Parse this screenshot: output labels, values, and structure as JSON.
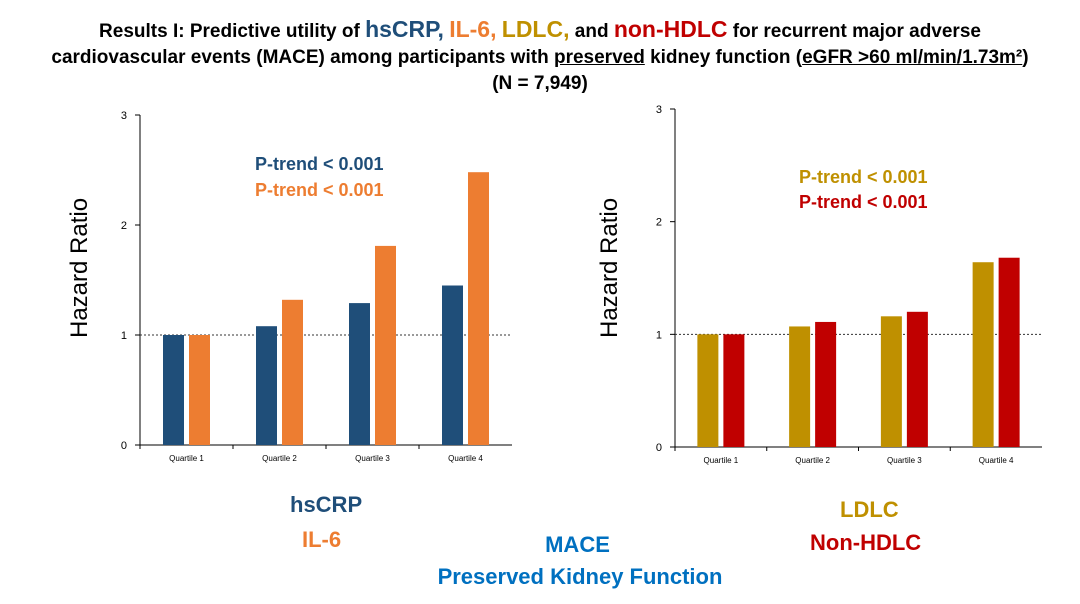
{
  "title": {
    "line1": {
      "prefix": "Results I: Predictive utility of ",
      "m1": "hsCRP,",
      "m2": "IL-6,",
      "m3": "LDLC,",
      "mid": "and",
      "m4": "non-HDLC",
      "suffix": "for recurrent major adverse"
    },
    "line2": {
      "prefix": "cardiovascular events (MACE) among participants with ",
      "underlined": "preserved",
      "mid": " kidney function (",
      "egfr": "eGFR  >60 ml/min/1.73m²",
      "close": ")"
    },
    "line3": "(N = 7,949)"
  },
  "colors": {
    "hsCRP": "#1f4e79",
    "IL6": "#ed7d31",
    "LDLC": "#bf9000",
    "nonHDLC": "#c00000",
    "mace": "#0070c0"
  },
  "left_panel": {
    "ylabel": "Hazard Ratio",
    "ptrend1": "P-trend < 0.001",
    "ptrend2": "P-trend < 0.001",
    "legend1": "hsCRP",
    "legend2": "IL-6"
  },
  "right_panel": {
    "ylabel": "Hazard Ratio",
    "ptrend1": "P-trend < 0.001",
    "ptrend2": "P-trend < 0.001",
    "legend1": "LDLC",
    "legend2": "Non-HDLC"
  },
  "footer": {
    "line1": "MACE",
    "line2": "Preserved Kidney Function"
  },
  "chart_data": [
    {
      "type": "bar",
      "categories": [
        "Quartile 1",
        "Quartile 2",
        "Quartile 3",
        "Quartile 4"
      ],
      "series": [
        {
          "name": "hsCRP",
          "values": [
            1.0,
            1.08,
            1.29,
            1.45
          ]
        },
        {
          "name": "IL-6",
          "values": [
            1.0,
            1.32,
            1.81,
            2.48
          ]
        }
      ],
      "ylabel": "Hazard Ratio",
      "ylim": [
        0,
        3
      ],
      "yticks": [
        0,
        1,
        2,
        3
      ],
      "reference_line": 1,
      "annotations": [
        "P-trend < 0.001",
        "P-trend < 0.001"
      ]
    },
    {
      "type": "bar",
      "categories": [
        "Quartile 1",
        "Quartile 2",
        "Quartile 3",
        "Quartile 4"
      ],
      "series": [
        {
          "name": "LDLC",
          "values": [
            1.0,
            1.07,
            1.16,
            1.64
          ]
        },
        {
          "name": "Non-HDLC",
          "values": [
            1.0,
            1.11,
            1.2,
            1.68
          ]
        }
      ],
      "ylabel": "Hazard Ratio",
      "ylim": [
        0,
        3
      ],
      "yticks": [
        0,
        1,
        2,
        3
      ],
      "reference_line": 1,
      "annotations": [
        "P-trend < 0.001",
        "P-trend < 0.001"
      ]
    }
  ]
}
